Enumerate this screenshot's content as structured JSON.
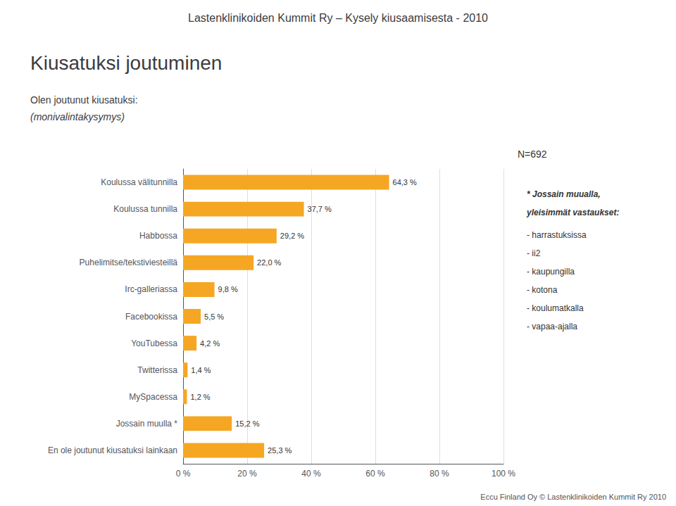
{
  "chart_data": {
    "type": "bar",
    "orientation": "horizontal",
    "header": "Lastenklinikoiden Kummit Ry – Kysely kiusaamisesta - 2010",
    "title": "Kiusatuksi joutuminen",
    "subtitle": [
      "Olen joutunut kiusatuksi:",
      "(monivalintakysymys)"
    ],
    "n_label": "N=692",
    "annotations": [
      "* Jossain muualla,",
      "yleisimmät vastaukset:",
      "- harrastuksissa",
      "- ii2",
      "- kaupungilla",
      "- kotona",
      "- koulumatkalla",
      "- vapaa-ajalla"
    ],
    "footer": "Eccu Finland Oy © Lastenklinikoiden Kummit Ry 2010",
    "categories": [
      "Koulussa välitunnilla",
      "Koulussa tunnilla",
      "Habbossa",
      "Puhelimitse/tekstiviesteillä",
      "Irc-galleriassa",
      "Facebookissa",
      "YouTubessa",
      "Twitterissa",
      "MySpacessa",
      "Jossain muulla *",
      "En ole joutunut kiusatuksi lainkaan"
    ],
    "values": [
      64.3,
      37.7,
      29.2,
      22.0,
      9.8,
      5.5,
      4.2,
      1.4,
      1.2,
      15.2,
      25.3
    ],
    "value_labels": [
      "64,3 %",
      "37,7 %",
      "29,2 %",
      "22,0 %",
      "9,8 %",
      "5,5 %",
      "4,2 %",
      "1,4 %",
      "1,2 %",
      "15,2 %",
      "25,3 %"
    ],
    "data_labels": true,
    "color": "#F5A623",
    "xlim": [
      0,
      100
    ],
    "xticks": [
      {
        "value": 0,
        "label": "0 %"
      },
      {
        "value": 20,
        "label": "20 %"
      },
      {
        "value": 40,
        "label": "40 %"
      },
      {
        "value": 60,
        "label": "60 %"
      },
      {
        "value": 80,
        "label": "80 %"
      },
      {
        "value": 100,
        "label": "100 %"
      }
    ],
    "grid": true
  }
}
